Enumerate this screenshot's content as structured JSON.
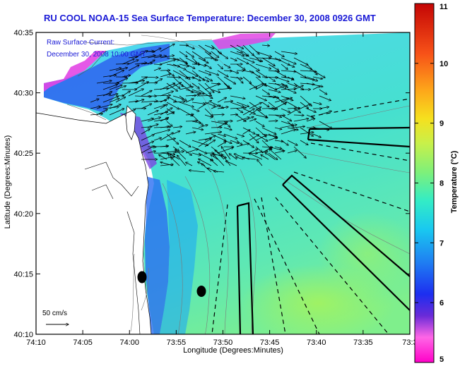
{
  "title": "RU COOL  NOAA-15  Sea Surface Temperature:  December 30, 2008 0926 GMT",
  "overlay": {
    "line1": "Raw Surface Current:",
    "line2": "December 30, 2008 10:00 GMT"
  },
  "axes": {
    "xlabel": "Longitude (Degrees:Minutes)",
    "ylabel": "Latitude (Degrees:Minutes)",
    "xticks": [
      "74:10",
      "74:05",
      "74:00",
      "73:55",
      "73:50",
      "73:45",
      "73:40",
      "73:35",
      "73:3"
    ],
    "yticks": [
      "40:35",
      "40:30",
      "40:25",
      "40:20",
      "40:15",
      "40:10"
    ]
  },
  "colorbar": {
    "label": "Temperature (°C)",
    "ticks": [
      "11",
      "10",
      "9",
      "8",
      "7",
      "6",
      "5"
    ]
  },
  "scale_label": "50 cm/s",
  "colors": {
    "title": "#1a1ad6",
    "land": "#ffffff",
    "vectors": "#000000"
  }
}
